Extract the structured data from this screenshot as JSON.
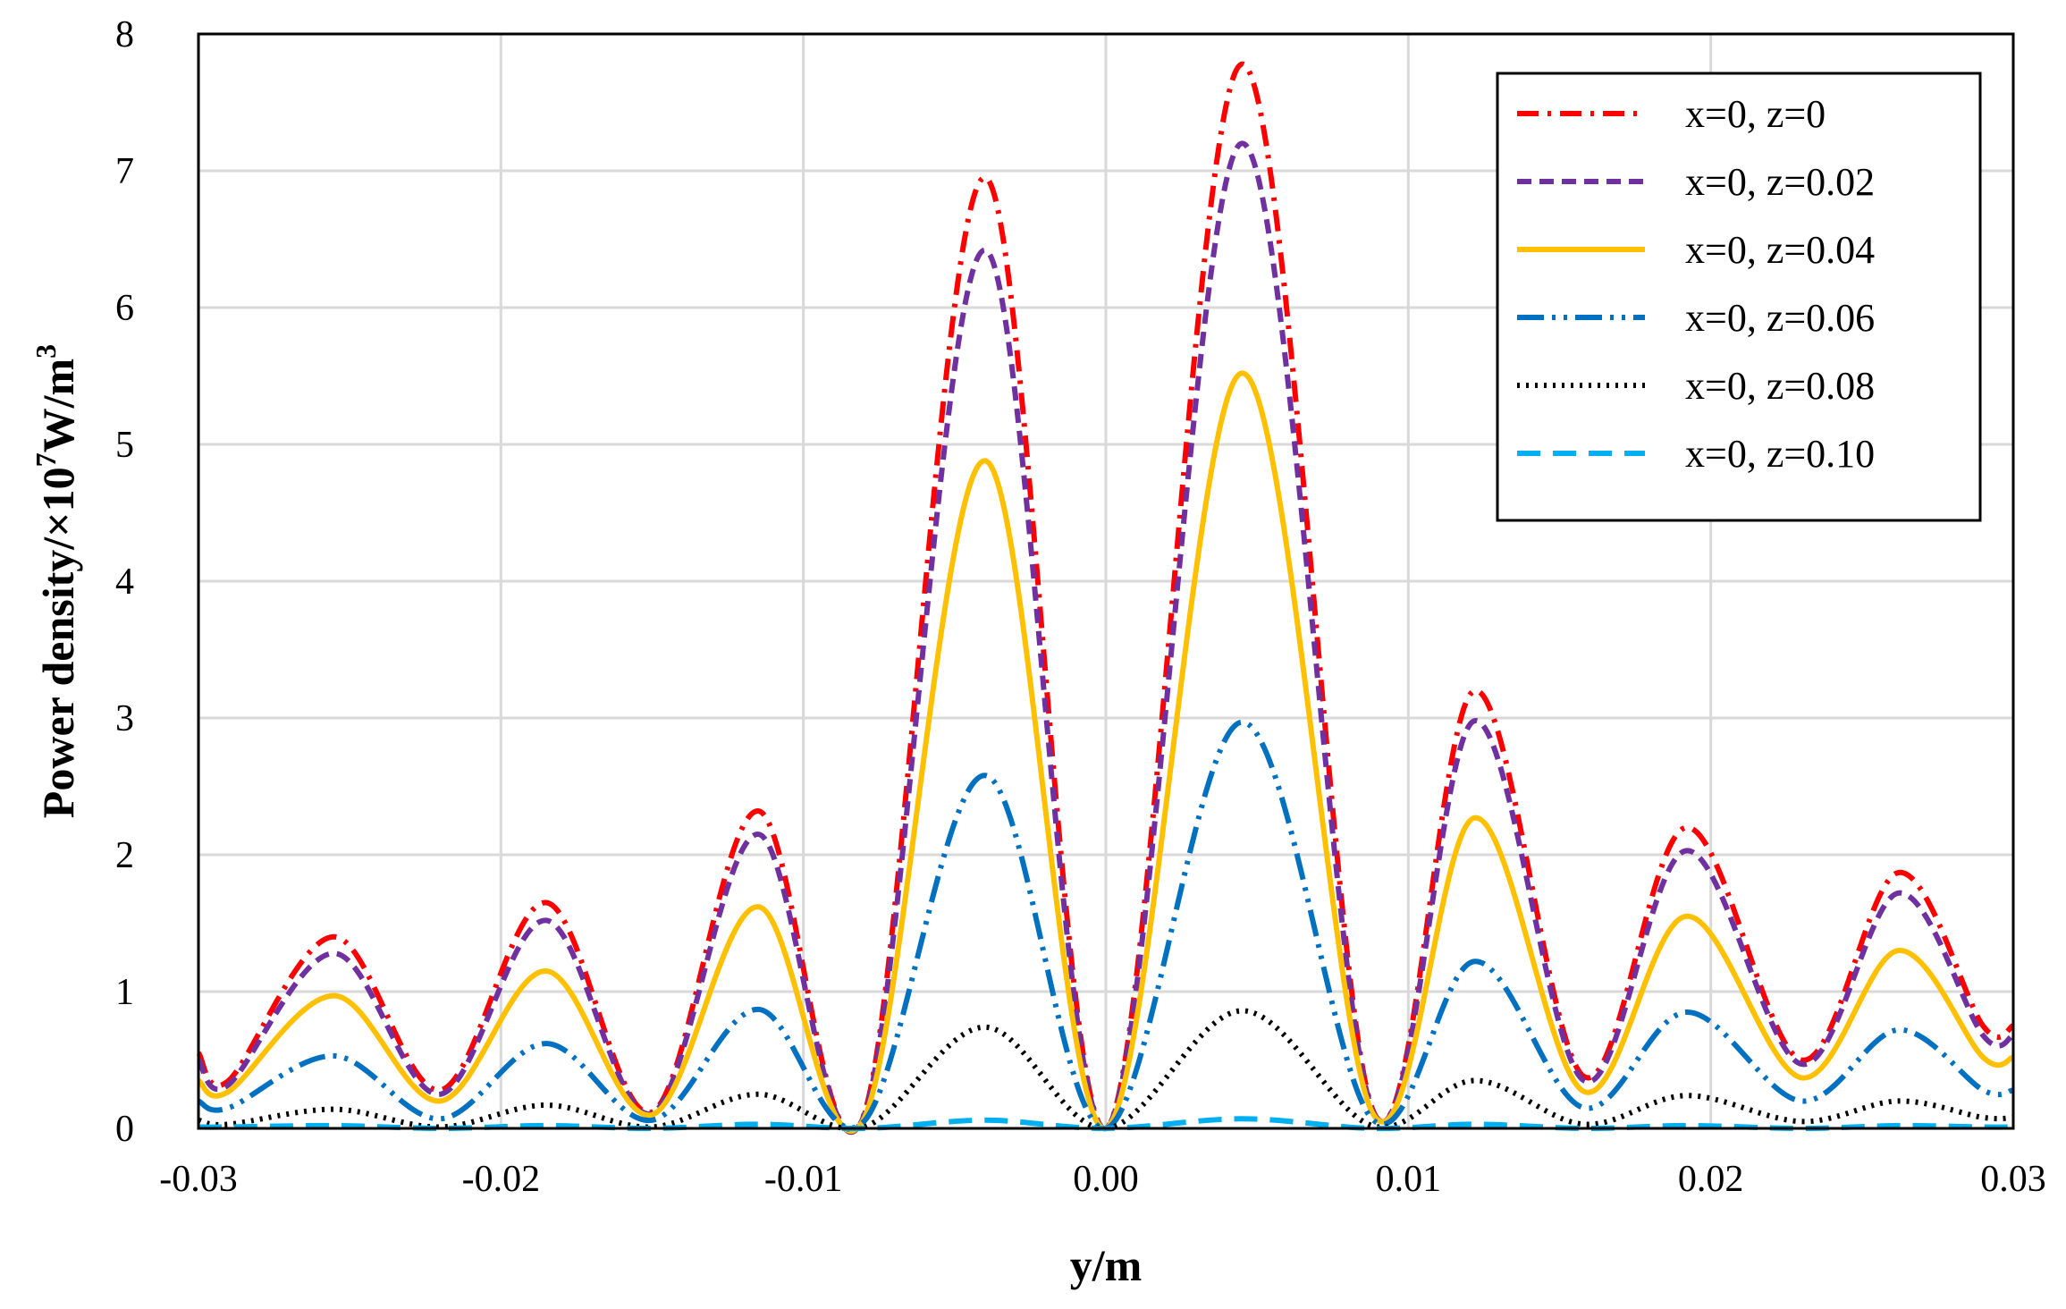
{
  "chart_data": {
    "type": "line",
    "title": "",
    "xlabel": "y/m",
    "ylabel": "Power density/×10",
    "ylabel_sup": "7",
    "ylabel_unit": "W/m",
    "ylabel_unit_sup": "3",
    "xlim": [
      -0.03,
      0.03
    ],
    "ylim": [
      0,
      8
    ],
    "x_ticks": [
      "-0.03",
      "-0.02",
      "-0.01",
      "0.00",
      "0.01",
      "0.02",
      "0.03"
    ],
    "y_ticks": [
      "0",
      "1",
      "2",
      "3",
      "4",
      "5",
      "6",
      "7",
      "8"
    ],
    "grid": true,
    "legend_position": "top-right",
    "x": [
      -0.03,
      -0.029,
      -0.0255,
      -0.022,
      -0.0185,
      -0.015,
      -0.0115,
      -0.008,
      -0.004,
      0.0,
      0.0045,
      0.0088,
      0.0122,
      0.0158,
      0.0192,
      0.023,
      0.0262,
      0.029,
      0.03
    ],
    "series": [
      {
        "name": "x=0, z=0",
        "color": "#ff0000",
        "dash": "dashdot",
        "values": [
          0.55,
          0.35,
          1.4,
          0.28,
          1.65,
          0.12,
          2.32,
          0.1,
          6.95,
          0.0,
          7.78,
          0.15,
          3.2,
          0.38,
          2.2,
          0.5,
          1.87,
          0.75,
          0.75
        ]
      },
      {
        "name": "x=0, z=0.02",
        "color": "#7030a0",
        "dash": "dash",
        "values": [
          0.5,
          0.32,
          1.28,
          0.25,
          1.52,
          0.11,
          2.15,
          0.09,
          6.42,
          0.0,
          7.2,
          0.14,
          2.98,
          0.35,
          2.03,
          0.47,
          1.72,
          0.68,
          0.68
        ]
      },
      {
        "name": "x=0, z=0.04",
        "color": "#ffc000",
        "dash": "solid",
        "values": [
          0.35,
          0.27,
          0.97,
          0.2,
          1.15,
          0.1,
          1.62,
          0.07,
          4.88,
          0.0,
          5.52,
          0.12,
          2.27,
          0.27,
          1.55,
          0.37,
          1.3,
          0.52,
          0.52
        ]
      },
      {
        "name": "x=0, z=0.06",
        "color": "#0070c0",
        "dash": "dashdotdot",
        "values": [
          0.2,
          0.15,
          0.53,
          0.07,
          0.62,
          0.06,
          0.87,
          0.05,
          2.58,
          0.0,
          2.97,
          0.07,
          1.22,
          0.15,
          0.85,
          0.2,
          0.72,
          0.28,
          0.28
        ]
      },
      {
        "name": "x=0, z=0.08",
        "color": "#000000",
        "dash": "dot",
        "values": [
          0.06,
          0.03,
          0.14,
          0.01,
          0.17,
          0.01,
          0.25,
          0.01,
          0.74,
          0.0,
          0.86,
          0.02,
          0.35,
          0.03,
          0.24,
          0.05,
          0.2,
          0.08,
          0.08
        ]
      },
      {
        "name": "x=0, z=0.10",
        "color": "#00b0f0",
        "dash": "longdash",
        "values": [
          0.01,
          0.01,
          0.02,
          0.0,
          0.02,
          0.0,
          0.03,
          0.0,
          0.06,
          0.0,
          0.07,
          0.0,
          0.03,
          0.0,
          0.02,
          0.0,
          0.02,
          0.01,
          0.01
        ]
      }
    ]
  }
}
